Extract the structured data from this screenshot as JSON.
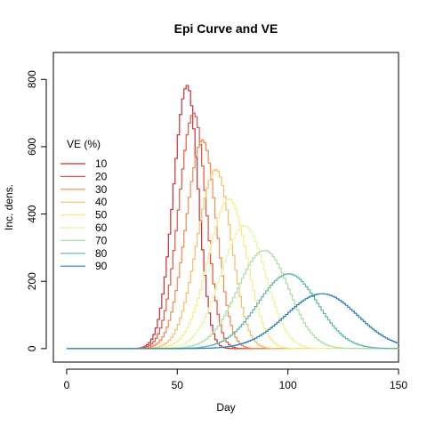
{
  "chart_data": {
    "type": "line",
    "title": "Epi Curve and VE",
    "xlabel": "Day",
    "ylabel": "Inc. dens.",
    "xlim": [
      -6,
      150
    ],
    "ylim": [
      -40,
      880
    ],
    "xticks": [
      0,
      50,
      100,
      150
    ],
    "yticks": [
      0,
      200,
      400,
      600,
      800
    ],
    "grid": false,
    "legend": {
      "title": "VE (%)",
      "position": "left",
      "entries": [
        "10",
        "20",
        "30",
        "40",
        "50",
        "60",
        "70",
        "80",
        "90"
      ]
    },
    "series": [
      {
        "name": "10",
        "color": "#C72E35",
        "peak_day": 54,
        "peak_value": 782,
        "sigma_left": 6.2,
        "sigma_right": 5.0
      },
      {
        "name": "20",
        "color": "#E2553F",
        "peak_day": 57,
        "peak_value": 700,
        "sigma_left": 6.8,
        "sigma_right": 5.6
      },
      {
        "name": "30",
        "color": "#F08A4D",
        "peak_day": 61,
        "peak_value": 620,
        "sigma_left": 7.5,
        "sigma_right": 6.2
      },
      {
        "name": "40",
        "color": "#F6BE63",
        "peak_day": 67,
        "peak_value": 532,
        "sigma_left": 8.5,
        "sigma_right": 7.0
      },
      {
        "name": "50",
        "color": "#FBEA87",
        "peak_day": 73,
        "peak_value": 445,
        "sigma_left": 9.5,
        "sigma_right": 8.0
      },
      {
        "name": "60",
        "color": "#E8F5A2",
        "peak_day": 80,
        "peak_value": 365,
        "sigma_left": 10.8,
        "sigma_right": 9.5
      },
      {
        "name": "70",
        "color": "#ABDDA4",
        "peak_day": 89,
        "peak_value": 292,
        "sigma_left": 12.2,
        "sigma_right": 11.0
      },
      {
        "name": "80",
        "color": "#5DB6A3",
        "peak_day": 100,
        "peak_value": 222,
        "sigma_left": 14.0,
        "sigma_right": 13.0
      },
      {
        "name": "90",
        "color": "#2B7EB5",
        "peak_day": 115,
        "peak_value": 163,
        "sigma_left": 16.5,
        "sigma_right": 16.0
      }
    ]
  }
}
